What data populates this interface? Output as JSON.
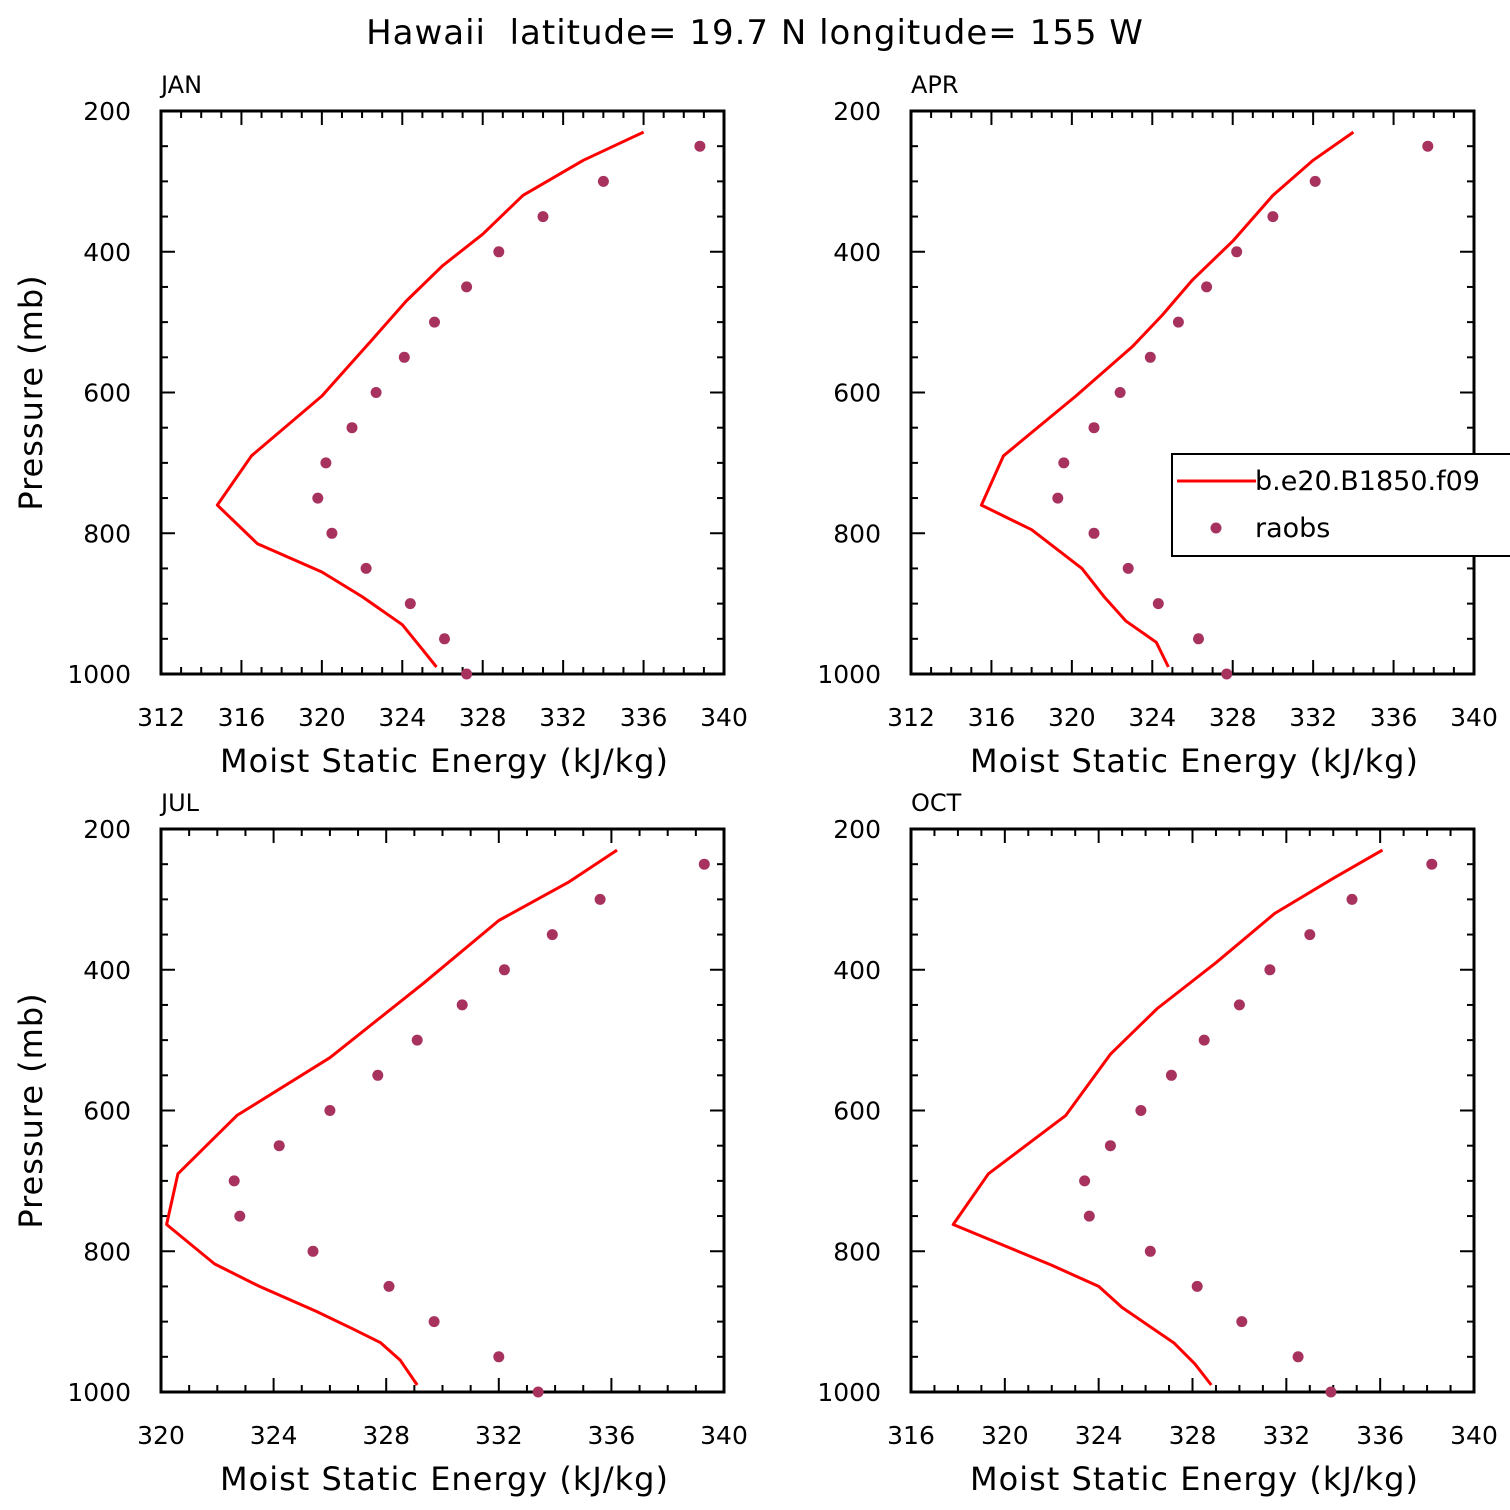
{
  "figure": {
    "title": "Hawaii  latitude= 19.7 N longitude= 155 W",
    "colors": {
      "model": "#ff0000",
      "obs": "#a8325e",
      "axis": "#000000"
    }
  },
  "legend": {
    "entries": [
      {
        "label": "b.e20.B1850.f09",
        "style": "line",
        "color": "#ff0000"
      },
      {
        "label": "raobs",
        "style": "marker",
        "color": "#a8325e"
      }
    ]
  },
  "chart_data": [
    {
      "type": "line",
      "title": "JAN",
      "xlabel": "Moist Static Energy (kJ/kg)",
      "ylabel": "Pressure (mb)",
      "xlim": [
        312,
        340
      ],
      "ylim": [
        200,
        1000
      ],
      "y_inverted": true,
      "xticks": [
        "312",
        "316",
        "320",
        "324",
        "328",
        "332",
        "336",
        "340"
      ],
      "yticks": [
        "200",
        "400",
        "600",
        "800",
        "1000"
      ],
      "series": [
        {
          "name": "b.e20.B1850.f09",
          "style": "line",
          "x": [
            336.0,
            333.0,
            330.0,
            328.0,
            326.0,
            324.2,
            322.5,
            320.0,
            316.5,
            314.8,
            316.8,
            320.0,
            322.0,
            324.0,
            325.0,
            325.7
          ],
          "y": [
            230,
            270,
            320,
            375,
            420,
            470,
            525,
            605,
            690,
            760,
            815,
            855,
            890,
            930,
            965,
            990
          ]
        },
        {
          "name": "raobs",
          "style": "markers",
          "x": [
            338.8,
            334.0,
            331.0,
            328.8,
            327.2,
            325.6,
            324.1,
            322.7,
            321.5,
            320.2,
            319.8,
            320.5,
            322.2,
            324.4,
            326.1,
            327.2
          ],
          "y": [
            250,
            300,
            350,
            400,
            450,
            500,
            550,
            600,
            650,
            700,
            750,
            800,
            850,
            900,
            950,
            1000
          ]
        }
      ]
    },
    {
      "type": "line",
      "title": "APR",
      "xlabel": "Moist Static Energy (kJ/kg)",
      "ylabel": "",
      "xlim": [
        312,
        340
      ],
      "ylim": [
        200,
        1000
      ],
      "y_inverted": true,
      "xticks": [
        "312",
        "316",
        "320",
        "324",
        "328",
        "332",
        "336",
        "340"
      ],
      "yticks": [
        "200",
        "400",
        "600",
        "800",
        "1000"
      ],
      "legend_position": "right-middle",
      "series": [
        {
          "name": "b.e20.B1850.f09",
          "style": "line",
          "x": [
            334.0,
            332.0,
            330.0,
            328.0,
            326.0,
            324.5,
            323.0,
            320.2,
            316.6,
            315.5,
            318.0,
            320.5,
            321.6,
            322.7,
            324.2,
            324.8
          ],
          "y": [
            230,
            270,
            320,
            385,
            440,
            490,
            535,
            605,
            690,
            760,
            795,
            850,
            890,
            925,
            955,
            990
          ]
        },
        {
          "name": "raobs",
          "style": "markers",
          "x": [
            337.7,
            332.1,
            330.0,
            328.2,
            326.7,
            325.3,
            323.9,
            322.4,
            321.1,
            319.6,
            319.3,
            321.1,
            322.8,
            324.3,
            326.3,
            327.7
          ],
          "y": [
            250,
            300,
            350,
            400,
            450,
            500,
            550,
            600,
            650,
            700,
            750,
            800,
            850,
            900,
            950,
            1000
          ]
        }
      ]
    },
    {
      "type": "line",
      "title": "JUL",
      "xlabel": "Moist Static Energy (kJ/kg)",
      "ylabel": "Pressure (mb)",
      "xlim": [
        320,
        340
      ],
      "ylim": [
        200,
        1000
      ],
      "y_inverted": true,
      "xticks": [
        "320",
        "324",
        "328",
        "332",
        "336",
        "340"
      ],
      "yticks": [
        "200",
        "400",
        "600",
        "800",
        "1000"
      ],
      "series": [
        {
          "name": "b.e20.B1850.f09",
          "style": "line",
          "x": [
            336.2,
            334.5,
            332.0,
            329.3,
            326.0,
            322.7,
            320.6,
            320.2,
            321.9,
            323.5,
            325.5,
            326.8,
            327.8,
            328.5,
            329.1
          ],
          "y": [
            230,
            275,
            330,
            420,
            525,
            607,
            690,
            762,
            818,
            850,
            885,
            910,
            930,
            955,
            990
          ]
        },
        {
          "name": "raobs",
          "style": "markers",
          "x": [
            339.3,
            335.6,
            333.9,
            332.2,
            330.7,
            329.1,
            327.7,
            326.0,
            324.2,
            322.6,
            322.8,
            325.4,
            328.1,
            329.7,
            332.0,
            333.4
          ],
          "y": [
            250,
            300,
            350,
            400,
            450,
            500,
            550,
            600,
            650,
            700,
            750,
            800,
            850,
            900,
            950,
            1000
          ]
        }
      ]
    },
    {
      "type": "line",
      "title": "OCT",
      "xlabel": "Moist Static Energy (kJ/kg)",
      "ylabel": "",
      "xlim": [
        316,
        340
      ],
      "ylim": [
        200,
        1000
      ],
      "y_inverted": true,
      "xticks": [
        "316",
        "320",
        "324",
        "328",
        "332",
        "336",
        "340"
      ],
      "yticks": [
        "200",
        "400",
        "600",
        "800",
        "1000"
      ],
      "series": [
        {
          "name": "b.e20.B1850.f09",
          "style": "line",
          "x": [
            336.1,
            334.0,
            331.5,
            329.0,
            326.5,
            324.5,
            322.6,
            319.3,
            317.8,
            322.0,
            324.0,
            325.0,
            327.2,
            328.1,
            328.8
          ],
          "y": [
            230,
            270,
            320,
            390,
            455,
            520,
            607,
            690,
            762,
            820,
            850,
            880,
            930,
            960,
            990
          ]
        },
        {
          "name": "raobs",
          "style": "markers",
          "x": [
            338.2,
            334.8,
            333.0,
            331.3,
            330.0,
            328.5,
            327.1,
            325.8,
            324.5,
            323.4,
            323.6,
            326.2,
            328.2,
            330.1,
            332.5,
            333.9
          ],
          "y": [
            250,
            300,
            350,
            400,
            450,
            500,
            550,
            600,
            650,
            700,
            750,
            800,
            850,
            900,
            950,
            1000
          ]
        }
      ]
    }
  ]
}
